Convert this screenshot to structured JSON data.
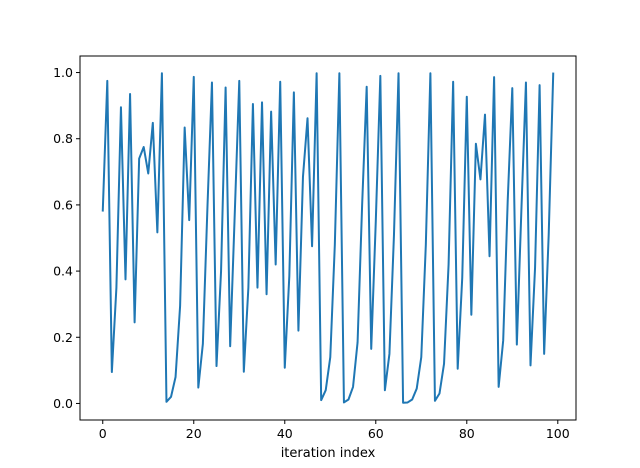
{
  "chart_data": {
    "type": "line",
    "title": "",
    "xlabel": "iteration index",
    "ylabel": "",
    "xlim": [
      -5,
      104
    ],
    "ylim": [
      -0.05,
      1.05
    ],
    "xticks": [
      0,
      20,
      40,
      60,
      80,
      100
    ],
    "yticks": [
      0.0,
      0.2,
      0.4,
      0.6,
      0.8,
      1.0
    ],
    "xtick_labels": [
      "0",
      "20",
      "40",
      "60",
      "80",
      "100"
    ],
    "ytick_labels": [
      "0.0",
      "0.2",
      "0.4",
      "0.6",
      "0.8",
      "1.0"
    ],
    "grid": false,
    "line_color": "#1f77b4",
    "series": [
      {
        "x": [
          0,
          1,
          2,
          3,
          4,
          5,
          6,
          7,
          8,
          9,
          10,
          11,
          12,
          13,
          14,
          15,
          16,
          17,
          18,
          19,
          20,
          21,
          22,
          23,
          24,
          25,
          26,
          27,
          28,
          29,
          30,
          31,
          32,
          33,
          34,
          35,
          36,
          37,
          38,
          39,
          40,
          41,
          42,
          43,
          44,
          45,
          46,
          47,
          48,
          49,
          50,
          51,
          52,
          53,
          54,
          55,
          56,
          57,
          58,
          59,
          60,
          61,
          62,
          63,
          64,
          65,
          66,
          67,
          68,
          69,
          70,
          71,
          72,
          73,
          74,
          75,
          76,
          77,
          78,
          79,
          80,
          81,
          82,
          83,
          84,
          85,
          86,
          87,
          88,
          89,
          90,
          91,
          92,
          93,
          94,
          95,
          96,
          97,
          98,
          99
        ],
        "values": [
          0.58,
          0.975,
          0.095,
          0.35,
          0.895,
          0.375,
          0.935,
          0.245,
          0.74,
          0.775,
          0.695,
          0.848,
          0.517,
          0.998,
          0.005,
          0.02,
          0.08,
          0.295,
          0.834,
          0.554,
          0.987,
          0.048,
          0.18,
          0.59,
          0.97,
          0.113,
          0.4,
          0.955,
          0.173,
          0.57,
          0.975,
          0.096,
          0.35,
          0.905,
          0.35,
          0.91,
          0.33,
          0.882,
          0.42,
          0.972,
          0.108,
          0.385,
          0.94,
          0.22,
          0.685,
          0.862,
          0.475,
          0.998,
          0.01,
          0.04,
          0.14,
          0.48,
          0.998,
          0.003,
          0.012,
          0.05,
          0.185,
          0.6,
          0.957,
          0.165,
          0.55,
          0.99,
          0.04,
          0.15,
          0.51,
          0.998,
          0.002,
          0.003,
          0.012,
          0.045,
          0.14,
          0.48,
          0.998,
          0.008,
          0.03,
          0.12,
          0.42,
          0.972,
          0.105,
          0.38,
          0.927,
          0.268,
          0.785,
          0.677,
          0.873,
          0.445,
          0.986,
          0.05,
          0.19,
          0.615,
          0.953,
          0.178,
          0.585,
          0.97,
          0.115,
          0.41,
          0.962,
          0.15,
          0.51,
          1.0
        ]
      }
    ]
  }
}
